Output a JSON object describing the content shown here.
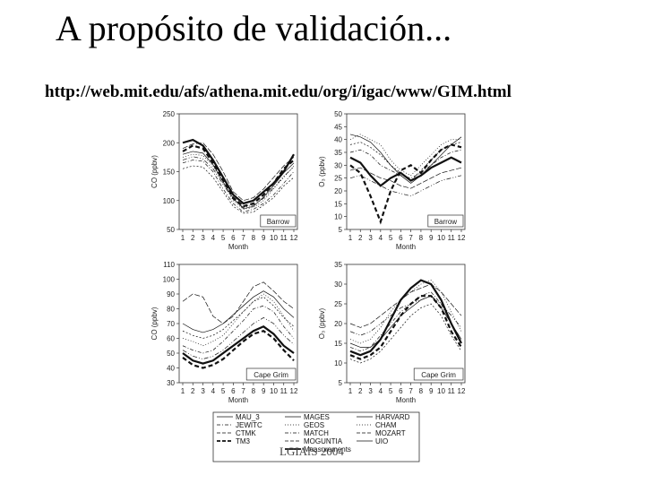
{
  "slide": {
    "title": "A propósito de validación...",
    "url": "http://web.mit.edu/afs/athena.mit.edu/org/i/igac/www/GIM.html",
    "footer": "LGIAfS 2004"
  },
  "chart_data": [
    {
      "type": "line",
      "panel": "top-left",
      "xlabel": "Month",
      "ylabel": "CO (ppbv)",
      "label_box": "Barrow",
      "x": [
        1,
        2,
        3,
        4,
        5,
        6,
        7,
        8,
        9,
        10,
        11,
        12
      ],
      "ylim": [
        50,
        250
      ],
      "yticks": [
        50,
        100,
        150,
        200,
        250
      ],
      "series": [
        {
          "style": "thick-solid",
          "values": [
            200,
            205,
            195,
            170,
            140,
            110,
            95,
            100,
            115,
            130,
            150,
            180
          ]
        },
        {
          "style": "thick-dashed",
          "values": [
            185,
            195,
            190,
            165,
            135,
            105,
            90,
            95,
            110,
            130,
            155,
            170
          ]
        },
        {
          "style": "thin",
          "values": [
            175,
            180,
            178,
            160,
            130,
            100,
            85,
            88,
            100,
            120,
            140,
            160
          ]
        },
        {
          "style": "thin",
          "values": [
            165,
            170,
            168,
            150,
            120,
            95,
            80,
            85,
            95,
            110,
            130,
            150
          ]
        },
        {
          "style": "thin",
          "values": [
            190,
            198,
            200,
            180,
            150,
            115,
            100,
            105,
            120,
            140,
            160,
            175
          ]
        },
        {
          "style": "thin",
          "values": [
            155,
            160,
            158,
            140,
            115,
            90,
            78,
            80,
            92,
            105,
            125,
            140
          ]
        },
        {
          "style": "thin",
          "values": [
            170,
            176,
            172,
            155,
            128,
            102,
            88,
            92,
            104,
            122,
            142,
            158
          ]
        },
        {
          "style": "thin",
          "values": [
            180,
            185,
            182,
            162,
            132,
            104,
            86,
            90,
            106,
            126,
            148,
            165
          ]
        }
      ]
    },
    {
      "type": "line",
      "panel": "top-right",
      "xlabel": "Month",
      "ylabel": "O₃ (ppbv)",
      "label_box": "Barrow",
      "x": [
        1,
        2,
        3,
        4,
        5,
        6,
        7,
        8,
        9,
        10,
        11,
        12
      ],
      "ylim": [
        5,
        50
      ],
      "yticks": [
        5,
        10,
        15,
        20,
        25,
        30,
        35,
        40,
        45,
        50
      ],
      "series": [
        {
          "style": "thick-solid",
          "values": [
            33,
            31,
            26,
            22,
            25,
            27,
            24,
            26,
            29,
            31,
            33,
            31
          ]
        },
        {
          "style": "thick-dashed",
          "values": [
            30,
            27,
            18,
            8,
            20,
            28,
            30,
            27,
            32,
            36,
            38,
            37
          ]
        },
        {
          "style": "thin",
          "values": [
            40,
            42,
            40,
            38,
            32,
            28,
            26,
            30,
            34,
            38,
            40,
            40
          ]
        },
        {
          "style": "thin",
          "values": [
            35,
            36,
            34,
            30,
            28,
            26,
            25,
            27,
            30,
            33,
            35,
            36
          ]
        },
        {
          "style": "thin",
          "values": [
            28,
            29,
            27,
            25,
            24,
            22,
            21,
            23,
            25,
            27,
            28,
            29
          ]
        },
        {
          "style": "thin",
          "values": [
            38,
            39,
            37,
            34,
            30,
            27,
            24,
            28,
            32,
            36,
            38,
            39
          ]
        },
        {
          "style": "thin",
          "values": [
            25,
            26,
            24,
            22,
            20,
            19,
            18,
            20,
            22,
            24,
            25,
            26
          ]
        },
        {
          "style": "thin",
          "values": [
            42,
            41,
            39,
            35,
            30,
            26,
            23,
            26,
            30,
            34,
            38,
            41
          ]
        }
      ]
    },
    {
      "type": "line",
      "panel": "bottom-left",
      "xlabel": "Month",
      "ylabel": "CO (ppbv)",
      "label_box": "Cape Grim",
      "x": [
        1,
        2,
        3,
        4,
        5,
        6,
        7,
        8,
        9,
        10,
        11,
        12
      ],
      "ylim": [
        30,
        110
      ],
      "yticks": [
        30,
        40,
        50,
        60,
        70,
        80,
        90,
        100,
        110
      ],
      "series": [
        {
          "style": "thick-solid",
          "values": [
            50,
            45,
            43,
            45,
            50,
            55,
            60,
            65,
            68,
            63,
            55,
            50
          ]
        },
        {
          "style": "thick-dashed",
          "values": [
            47,
            42,
            40,
            42,
            46,
            52,
            58,
            63,
            65,
            60,
            52,
            45
          ]
        },
        {
          "style": "thin",
          "values": [
            60,
            58,
            55,
            58,
            62,
            70,
            78,
            85,
            90,
            85,
            75,
            65
          ]
        },
        {
          "style": "thin",
          "values": [
            55,
            52,
            50,
            52,
            58,
            65,
            72,
            80,
            82,
            78,
            68,
            60
          ]
        },
        {
          "style": "thin",
          "values": [
            85,
            90,
            88,
            75,
            70,
            75,
            85,
            95,
            98,
            92,
            85,
            80
          ]
        },
        {
          "style": "thin",
          "values": [
            65,
            62,
            60,
            62,
            66,
            72,
            78,
            85,
            88,
            82,
            74,
            68
          ]
        },
        {
          "style": "thin",
          "values": [
            52,
            48,
            46,
            48,
            52,
            58,
            64,
            70,
            74,
            70,
            62,
            56
          ]
        },
        {
          "style": "thin",
          "values": [
            70,
            66,
            64,
            66,
            70,
            76,
            82,
            88,
            92,
            88,
            80,
            74
          ]
        }
      ]
    },
    {
      "type": "line",
      "panel": "bottom-right",
      "xlabel": "Month",
      "ylabel": "O₃ (ppbv)",
      "label_box": "Cape Grim",
      "x": [
        1,
        2,
        3,
        4,
        5,
        6,
        7,
        8,
        9,
        10,
        11,
        12
      ],
      "ylim": [
        5,
        35
      ],
      "yticks": [
        5,
        10,
        15,
        20,
        25,
        30,
        35
      ],
      "series": [
        {
          "style": "thick-solid",
          "values": [
            13,
            12,
            13,
            16,
            21,
            26,
            29,
            31,
            30,
            26,
            20,
            15
          ]
        },
        {
          "style": "thick-dashed",
          "values": [
            12,
            11,
            12,
            14,
            18,
            22,
            25,
            27,
            27,
            24,
            18,
            14
          ]
        },
        {
          "style": "thin",
          "values": [
            16,
            15,
            16,
            19,
            23,
            26,
            28,
            30,
            31,
            28,
            23,
            18
          ]
        },
        {
          "style": "thin",
          "values": [
            14,
            13,
            14,
            17,
            20,
            23,
            25,
            27,
            28,
            25,
            20,
            16
          ]
        },
        {
          "style": "thin",
          "values": [
            20,
            19,
            20,
            22,
            24,
            26,
            28,
            29,
            30,
            28,
            25,
            22
          ]
        },
        {
          "style": "thin",
          "values": [
            11,
            10,
            11,
            13,
            16,
            19,
            22,
            24,
            25,
            22,
            17,
            13
          ]
        },
        {
          "style": "thin",
          "values": [
            18,
            17,
            18,
            20,
            22,
            24,
            25,
            26,
            27,
            25,
            22,
            19
          ]
        },
        {
          "style": "thin",
          "values": [
            15,
            14,
            14,
            16,
            19,
            22,
            24,
            26,
            27,
            24,
            20,
            16
          ]
        }
      ]
    }
  ],
  "legend": {
    "entries": [
      {
        "label": "MAU_3",
        "style": "thin"
      },
      {
        "label": "JEWITC",
        "style": "dash-dot"
      },
      {
        "label": "CTMK",
        "style": "dashed"
      },
      {
        "label": "TM3",
        "style": "thick-dashed"
      },
      {
        "label": "MAGES",
        "style": "thin"
      },
      {
        "label": "GEOS",
        "style": "dotted"
      },
      {
        "label": "MATCH",
        "style": "dash-dot"
      },
      {
        "label": "MOGUNTIA",
        "style": "dashed"
      },
      {
        "label": "Measurements",
        "style": "thick-solid"
      },
      {
        "label": "HARVARD",
        "style": "thin"
      },
      {
        "label": "CHAM",
        "style": "dotted"
      },
      {
        "label": "MOZART",
        "style": "dashed"
      },
      {
        "label": "UIO",
        "style": "thin"
      }
    ]
  }
}
